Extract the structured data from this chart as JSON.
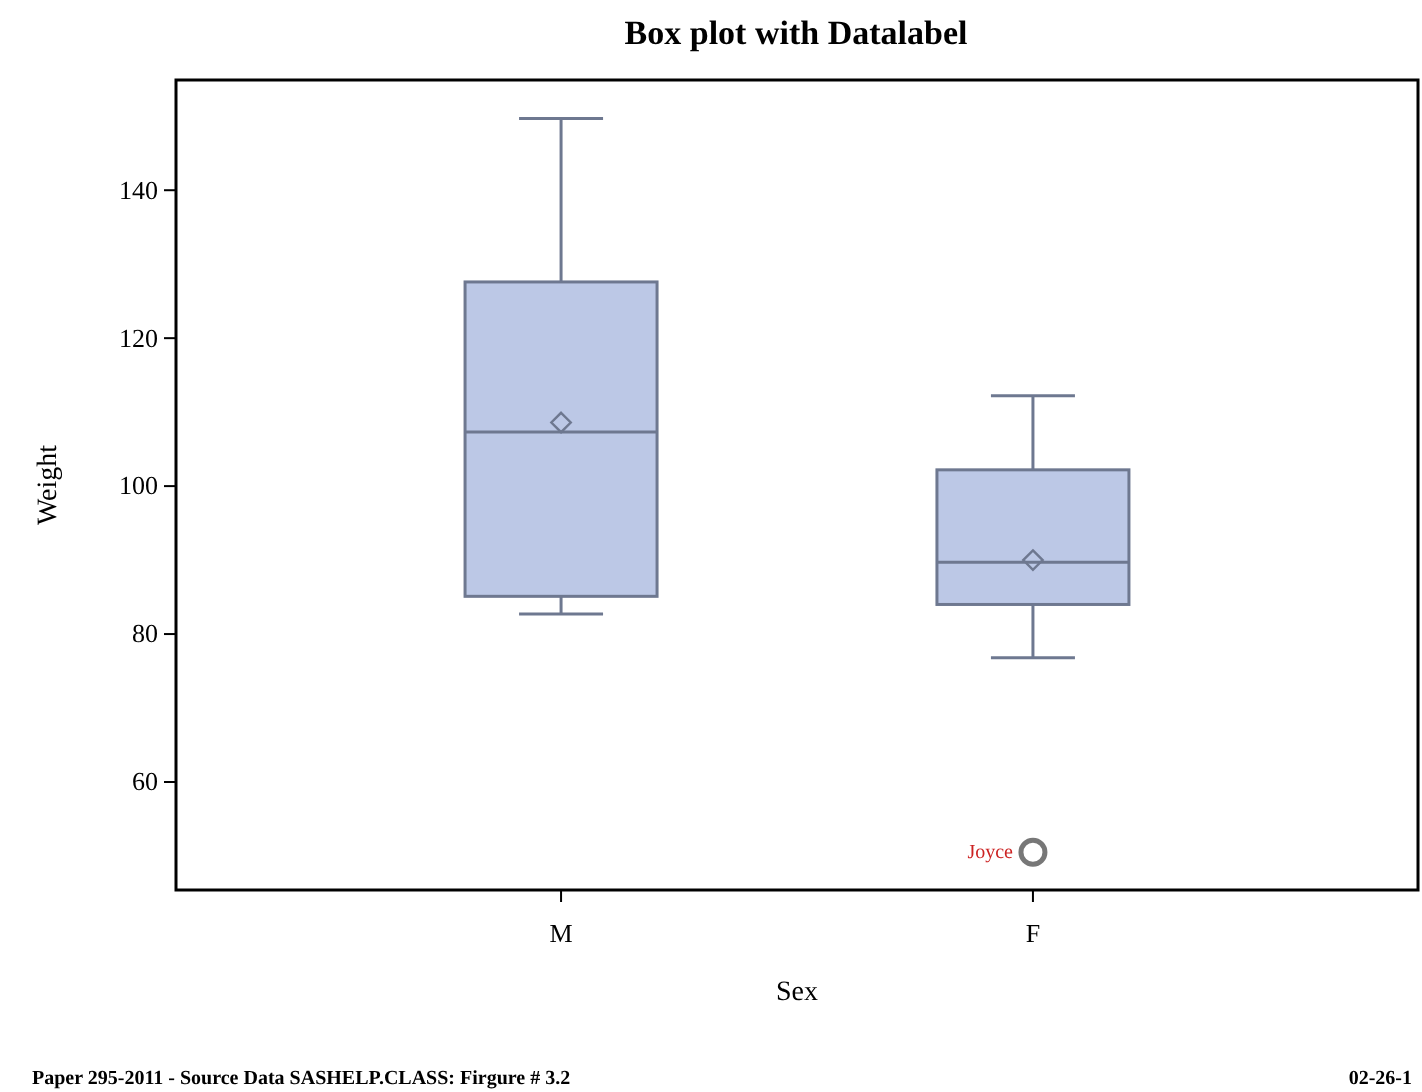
{
  "chart_data": {
    "type": "box",
    "title": "Box plot with Datalabel",
    "xlabel": "Sex",
    "ylabel": "Weight",
    "categories": [
      "M",
      "F"
    ],
    "boxes": [
      {
        "low": 82.7,
        "q1": 85.1,
        "median": 107.3,
        "q3": 127.6,
        "high": 149.7,
        "mean": 108.6
      },
      {
        "low": 76.8,
        "q1": 84,
        "median": 89.7,
        "q3": 102.2,
        "high": 112.2,
        "mean": 90,
        "outliers": [
          50.5
        ]
      }
    ],
    "color": "#bcc8e6",
    "ylim": [
      45.4,
      154.9
    ],
    "yticks": [
      60,
      80,
      100,
      120,
      140
    ],
    "annotations": [
      "Joyce",
      "Paper 295-2011 - Source Data SASHELP.CLASS: Firgure # 3.2",
      "02-26-1"
    ]
  }
}
